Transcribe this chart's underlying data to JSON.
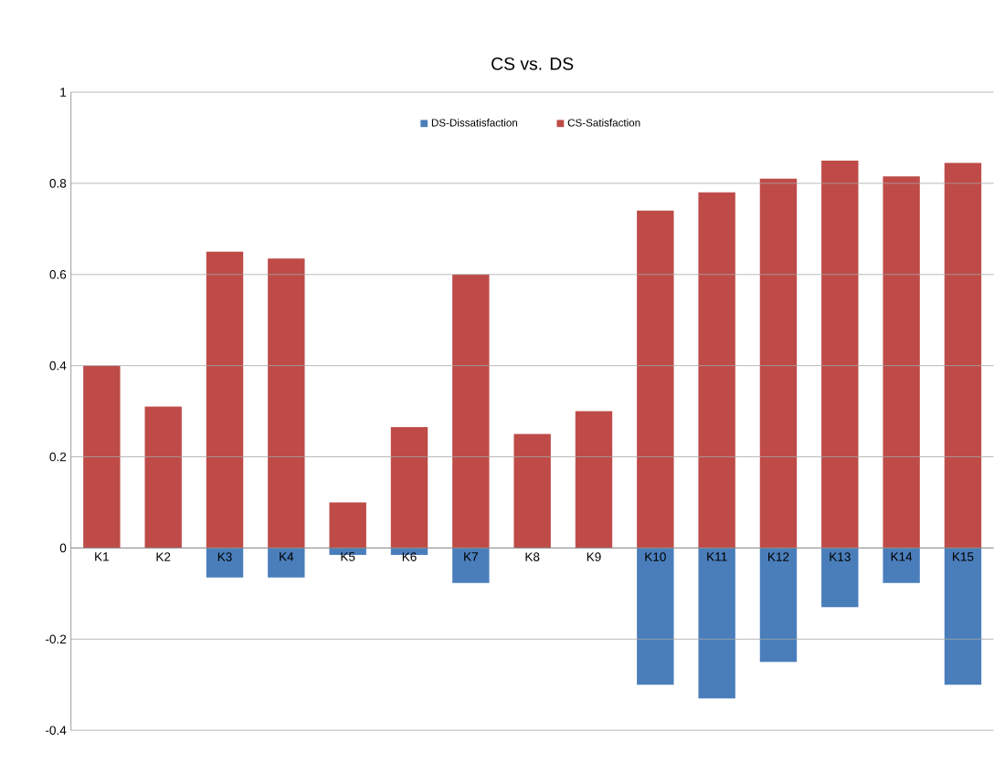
{
  "chart_data": {
    "type": "bar",
    "title": "CS vs. DS",
    "categories": [
      "K1",
      "K2",
      "K3",
      "K4",
      "K5",
      "K6",
      "K7",
      "K8",
      "K9",
      "K10",
      "K11",
      "K12",
      "K13",
      "K14",
      "K15"
    ],
    "series": [
      {
        "name": "DS-Dissatisfaction",
        "color": "#4a7ebb",
        "values": [
          0,
          0,
          -0.065,
          -0.065,
          -0.015,
          -0.015,
          -0.077,
          0,
          0,
          -0.3,
          -0.33,
          -0.25,
          -0.13,
          -0.077,
          -0.3
        ]
      },
      {
        "name": "CS-Satisfaction",
        "color": "#be4b48",
        "values": [
          0.4,
          0.31,
          0.65,
          0.635,
          0.1,
          0.265,
          0.6,
          0.25,
          0.3,
          0.74,
          0.78,
          0.81,
          0.85,
          0.815,
          0.845
        ]
      }
    ],
    "ylim": [
      -0.4,
      1
    ],
    "yticks": [
      -0.4,
      -0.2,
      0,
      0.2,
      0.4,
      0.6,
      0.8,
      1
    ],
    "stacked": true,
    "grid": "y",
    "legend": "top"
  }
}
